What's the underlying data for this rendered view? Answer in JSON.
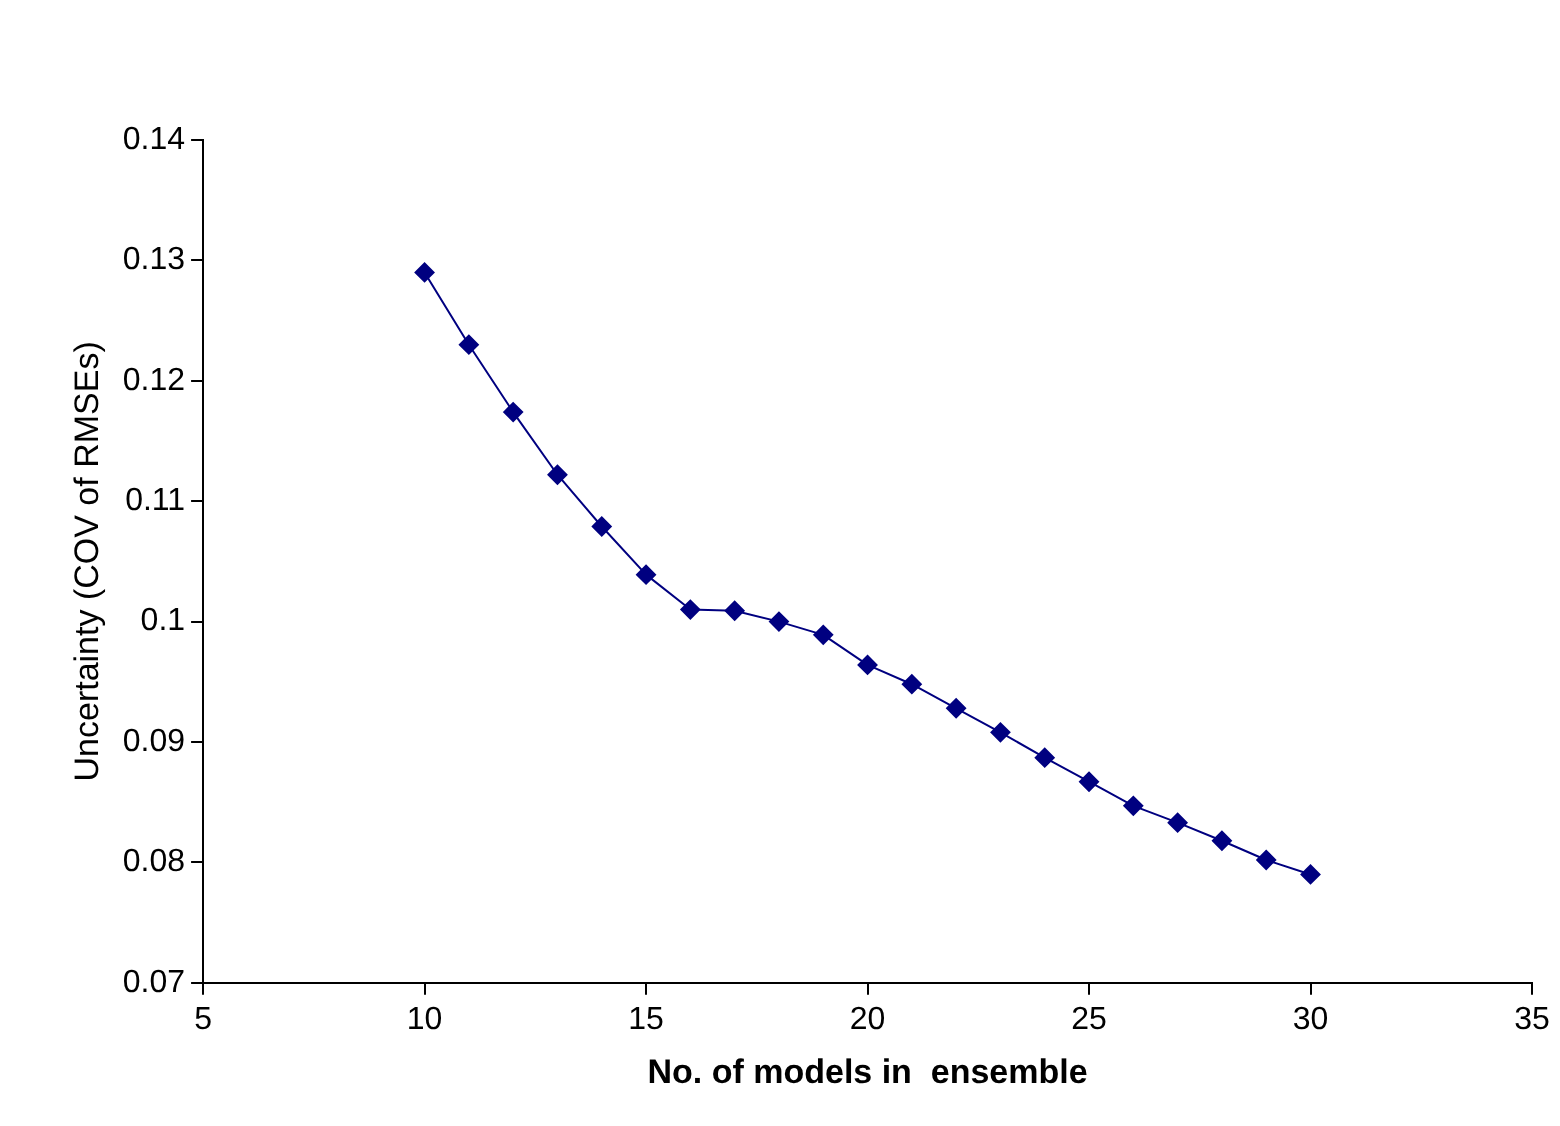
{
  "chart_data": {
    "type": "line",
    "xlabel": "No. of models in  ensemble",
    "ylabel": "Uncertainty (COV of RMSEs)",
    "x": [
      10,
      11,
      12,
      13,
      14,
      15,
      16,
      17,
      18,
      19,
      20,
      21,
      22,
      23,
      24,
      25,
      26,
      27,
      28,
      29,
      30
    ],
    "series": [
      {
        "color": "#000080",
        "values": [
          0.129,
          0.123,
          0.1174,
          0.1122,
          0.1079,
          0.1039,
          0.101,
          0.1009,
          0.1,
          0.0989,
          0.0964,
          0.0948,
          0.0928,
          0.0908,
          0.0887,
          0.0867,
          0.0847,
          0.0833,
          0.0818,
          0.0802,
          0.079
        ]
      }
    ],
    "xlim": [
      5,
      35
    ],
    "xticks": [
      5,
      10,
      15,
      20,
      25,
      30,
      35
    ],
    "ylim": [
      0.07,
      0.14
    ],
    "yticks": [
      0.07,
      0.08,
      0.09,
      0.1,
      0.11,
      0.12,
      0.13,
      0.14
    ],
    "grid": false,
    "legend": false,
    "marker": "diamond",
    "line_style": "solid"
  }
}
